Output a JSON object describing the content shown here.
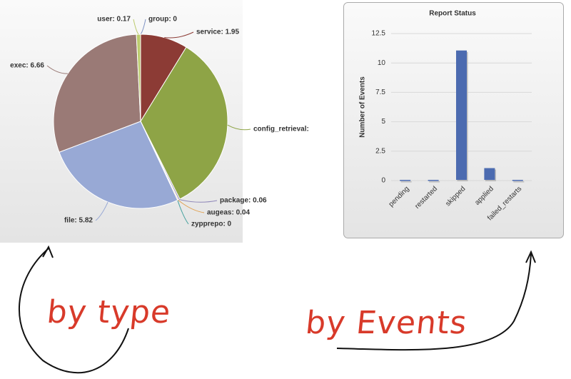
{
  "chart_data": [
    {
      "type": "pie",
      "categories": [
        "group",
        "service",
        "config_retrieval",
        "package",
        "augeas",
        "zypprepo",
        "file",
        "exec",
        "user"
      ],
      "values": [
        0,
        1.95,
        7.5,
        0.06,
        0.04,
        0,
        5.82,
        6.66,
        0.17
      ],
      "value_labels": [
        "group: 0",
        "service: 1.95",
        "config_retrieval:",
        "package: 0.06",
        "augeas: 0.04",
        "zypprepo: 0",
        "file: 5.82",
        "exec: 6.66",
        "user: 0.17"
      ],
      "colors": [
        "#7f93c4",
        "#8c3b35",
        "#8ea446",
        "#8e86b8",
        "#e0a050",
        "#4aa3a0",
        "#98a9d5",
        "#9a7a76",
        "#bccb6e"
      ]
    },
    {
      "type": "bar",
      "title": "Report Status",
      "y_label": "Number of Events",
      "categories": [
        "pending",
        "restarted",
        "skipped",
        "applied",
        "failed_restarts"
      ],
      "values": [
        0,
        0,
        11,
        1,
        0
      ],
      "color": "#4c6bb0",
      "ylim": [
        0,
        12.5
      ],
      "yticks": [
        0,
        2.5,
        5,
        7.5,
        10,
        12.5
      ],
      "grid": true
    }
  ],
  "annotations": [
    "by type",
    "by Events"
  ]
}
